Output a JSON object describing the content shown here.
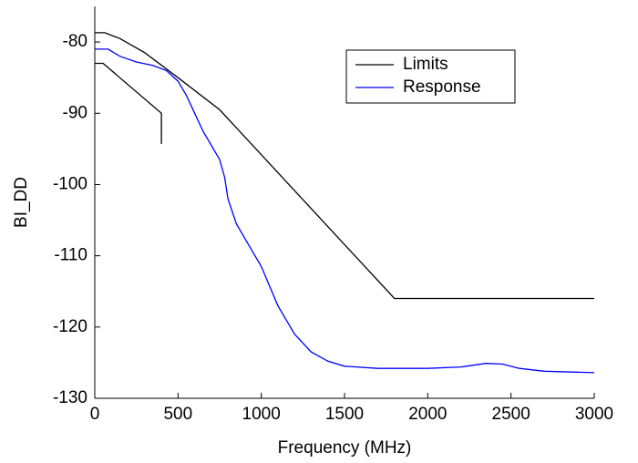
{
  "chart_data": {
    "type": "line",
    "x_label": "Frequency (MHz)",
    "y_label": "BI_DD",
    "xlim": [
      0,
      3000
    ],
    "xticks": [
      0,
      500,
      1000,
      1500,
      2000,
      2500,
      3000
    ],
    "ylim": [
      -75,
      -130
    ],
    "yticks": [
      -80,
      -90,
      -100,
      -110,
      -120,
      -130
    ],
    "legend": "upper right",
    "series": [
      {
        "name": "Limits",
        "color": "#000000",
        "x": [
          0,
          60,
          150,
          300,
          500,
          750,
          1800,
          3000,
          null,
          0,
          50,
          100,
          400,
          400
        ],
        "values": [
          -78.7,
          -78.7,
          -79.5,
          -81.5,
          -85,
          -89.5,
          -116,
          -116,
          null,
          -83,
          -83,
          -84,
          -90,
          -94.3
        ]
      },
      {
        "name": "Response",
        "color": "#0000ff",
        "x": [
          0,
          80,
          150,
          250,
          350,
          430,
          500,
          550,
          600,
          650,
          700,
          750,
          780,
          800,
          850,
          900,
          1000,
          1100,
          1200,
          1300,
          1400,
          1500,
          1700,
          2000,
          2200,
          2350,
          2450,
          2550,
          2700,
          3000
        ],
        "values": [
          -81,
          -81,
          -82,
          -82.8,
          -83.3,
          -84,
          -85.5,
          -87.5,
          -90,
          -92.5,
          -94.5,
          -96.5,
          -99,
          -102,
          -105.5,
          -107.5,
          -111.5,
          -117,
          -121,
          -123.5,
          -124.8,
          -125.5,
          -125.8,
          -125.8,
          -125.6,
          -125.1,
          -125.2,
          -125.8,
          -126.2,
          -126.4
        ]
      }
    ]
  }
}
